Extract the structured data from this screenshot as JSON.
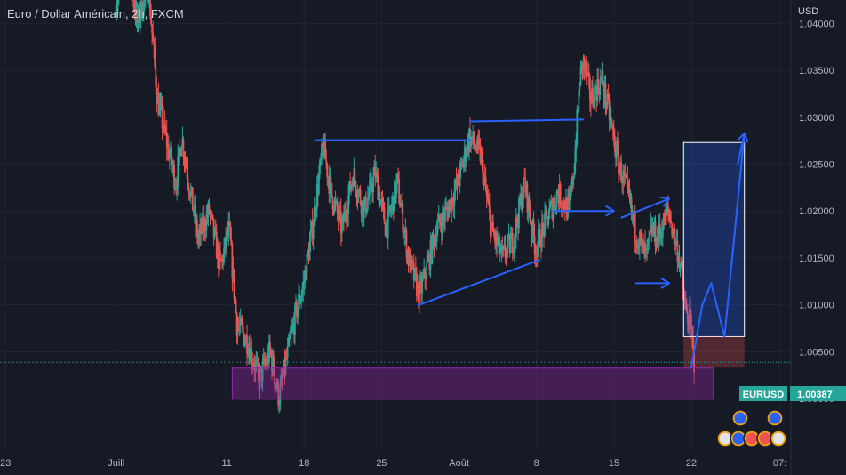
{
  "header": {
    "title": "Euro / Dollar Américain, 2h, FXCM",
    "currency": "USD"
  },
  "price_badge": {
    "symbol": "EURUSD",
    "price": "1.00387"
  },
  "colors": {
    "background": "#161a25",
    "bull": "#26a69a",
    "bear": "#ef5350",
    "drawing": "#2962ff",
    "demand_zone": "#9c27b0",
    "target_zone": "#2962ff",
    "badge": "#26a69a"
  },
  "chart_data": {
    "type": "candlestick",
    "symbol": "EURUSD",
    "timeframe": "2h",
    "ylim": [
      0.9945,
      1.0425
    ],
    "y_ticks": [
      "1.04000",
      "1.03500",
      "1.03000",
      "1.02500",
      "1.02000",
      "1.01500",
      "1.01000",
      "1.00500",
      "1.00000"
    ],
    "x_ticks": [
      {
        "label": "23",
        "day": -9
      },
      {
        "label": "Juill",
        "day": 1
      },
      {
        "label": "11",
        "day": 11
      },
      {
        "label": "18",
        "day": 18
      },
      {
        "label": "25",
        "day": 25
      },
      {
        "label": "Août",
        "day": 32
      },
      {
        "label": "8",
        "day": 39
      },
      {
        "label": "15",
        "day": 46
      },
      {
        "label": "22",
        "day": 53
      },
      {
        "label": "07:",
        "day": 61
      }
    ],
    "xlim": [
      -9.5,
      62
    ],
    "last_price": 1.00387,
    "price_path": [
      [
        1.0,
        1.042
      ],
      [
        2.0,
        1.047
      ],
      [
        3.0,
        1.04
      ],
      [
        4.0,
        1.044
      ],
      [
        4.8,
        1.032
      ],
      [
        5.8,
        1.0265
      ],
      [
        6.5,
        1.023
      ],
      [
        7.0,
        1.028
      ],
      [
        7.8,
        1.022
      ],
      [
        8.5,
        1.017
      ],
      [
        9.5,
        1.02
      ],
      [
        10.5,
        1.014
      ],
      [
        11.3,
        1.018
      ],
      [
        12.0,
        1.008
      ],
      [
        13.0,
        1.006
      ],
      [
        14.0,
        1.002
      ],
      [
        15.0,
        1.005
      ],
      [
        15.8,
        1.0
      ],
      [
        16.8,
        1.006
      ],
      [
        17.5,
        1.01
      ],
      [
        18.0,
        1.012
      ],
      [
        18.8,
        1.018
      ],
      [
        19.8,
        1.027
      ],
      [
        20.5,
        1.022
      ],
      [
        21.5,
        1.018
      ],
      [
        22.5,
        1.024
      ],
      [
        23.5,
        1.02
      ],
      [
        24.5,
        1.024
      ],
      [
        25.5,
        1.018
      ],
      [
        26.5,
        1.023
      ],
      [
        27.5,
        1.015
      ],
      [
        28.5,
        1.011
      ],
      [
        29.3,
        1.0145
      ],
      [
        30.0,
        1.018
      ],
      [
        31.0,
        1.02
      ],
      [
        32.0,
        1.023
      ],
      [
        33.0,
        1.028
      ],
      [
        34.0,
        1.026
      ],
      [
        35.0,
        1.018
      ],
      [
        36.0,
        1.015
      ],
      [
        37.0,
        1.017
      ],
      [
        38.0,
        1.023
      ],
      [
        39.0,
        1.016
      ],
      [
        40.0,
        1.019
      ],
      [
        41.0,
        1.022
      ],
      [
        42.0,
        1.02
      ],
      [
        42.5,
        1.025
      ],
      [
        43.0,
        1.034
      ],
      [
        43.3,
        1.036
      ],
      [
        44.0,
        1.032
      ],
      [
        45.0,
        1.034
      ],
      [
        45.7,
        1.03
      ],
      [
        46.5,
        1.025
      ],
      [
        47.3,
        1.022
      ],
      [
        48.0,
        1.018
      ],
      [
        49.0,
        1.015
      ],
      [
        49.5,
        1.018
      ],
      [
        50.0,
        1.017
      ],
      [
        51.0,
        1.02
      ],
      [
        52.0,
        1.015
      ],
      [
        52.6,
        1.009
      ],
      [
        53.0,
        1.008
      ],
      [
        53.3,
        1.004
      ]
    ],
    "zones": [
      {
        "name": "demand-zone",
        "x0": 11.5,
        "x1": 55.0,
        "y0": 0.99993,
        "y1": 1.00325
      },
      {
        "name": "target-zone",
        "x0": 52.3,
        "x1": 57.8,
        "y0": 1.0066,
        "y1": 1.0273
      },
      {
        "name": "stop-zone",
        "x0": 52.3,
        "x1": 57.8,
        "y0": 1.0033,
        "y1": 1.0066
      }
    ],
    "lines": [
      {
        "name": "resistance-line-1",
        "x0": 19.0,
        "y0": 1.02755,
        "x1": 33.0,
        "y1": 1.02755
      },
      {
        "name": "resistance-line-2",
        "x0": 33.0,
        "y0": 1.02955,
        "x1": 43.2,
        "y1": 1.02975
      },
      {
        "name": "support-trend-line",
        "x0": 28.3,
        "y0": 1.00995,
        "x1": 39.3,
        "y1": 1.0148
      },
      {
        "name": "projection-line",
        "x0": 53.0,
        "y0": 1.0033,
        "x1": 54.0,
        "y1": 1.01
      },
      {
        "name": "projection-line",
        "x0": 54.0,
        "y0": 1.01,
        "x1": 54.8,
        "y1": 1.0123
      },
      {
        "name": "projection-line",
        "x0": 54.8,
        "y0": 1.0123,
        "x1": 56.0,
        "y1": 1.0066
      },
      {
        "name": "projection-line",
        "x0": 56.0,
        "y0": 1.0066,
        "x1": 57.8,
        "y1": 1.0283
      }
    ],
    "arrows": [
      {
        "name": "arrow-right-1",
        "x0": 40.5,
        "y0": 1.02,
        "x1": 46.0,
        "y1": 1.02
      },
      {
        "name": "arrow-up-1",
        "x0": 46.7,
        "y0": 1.0193,
        "x1": 51.0,
        "y1": 1.0213
      },
      {
        "name": "arrow-right-2",
        "x0": 48.0,
        "y0": 1.0123,
        "x1": 51.0,
        "y1": 1.0123
      },
      {
        "name": "arrow-up-target",
        "x0": 57.2,
        "y0": 1.025,
        "x1": 57.8,
        "y1": 1.0283
      }
    ]
  }
}
